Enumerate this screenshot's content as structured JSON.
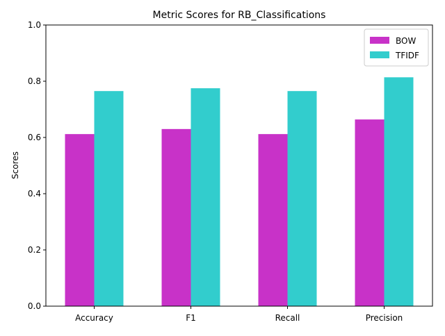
{
  "colors": {
    "bow": "#c832c8",
    "tfidf": "#32cdcd",
    "axis": "#000000",
    "legend_border": "#cccccc"
  },
  "chart_data": {
    "type": "bar",
    "title": "Metric Scores for RB_Classifications",
    "xlabel": "",
    "ylabel": "Scores",
    "categories": [
      "Accuracy",
      "F1",
      "Recall",
      "Precision"
    ],
    "series": [
      {
        "name": "BOW",
        "values": [
          0.612,
          0.63,
          0.612,
          0.664
        ]
      },
      {
        "name": "TFIDF",
        "values": [
          0.765,
          0.775,
          0.765,
          0.814
        ]
      }
    ],
    "ylim": [
      0,
      1.0
    ],
    "yticks": [
      "0.0",
      "0.2",
      "0.4",
      "0.6",
      "0.8",
      "1.0"
    ],
    "grid": false,
    "legend_position": "top-right"
  }
}
